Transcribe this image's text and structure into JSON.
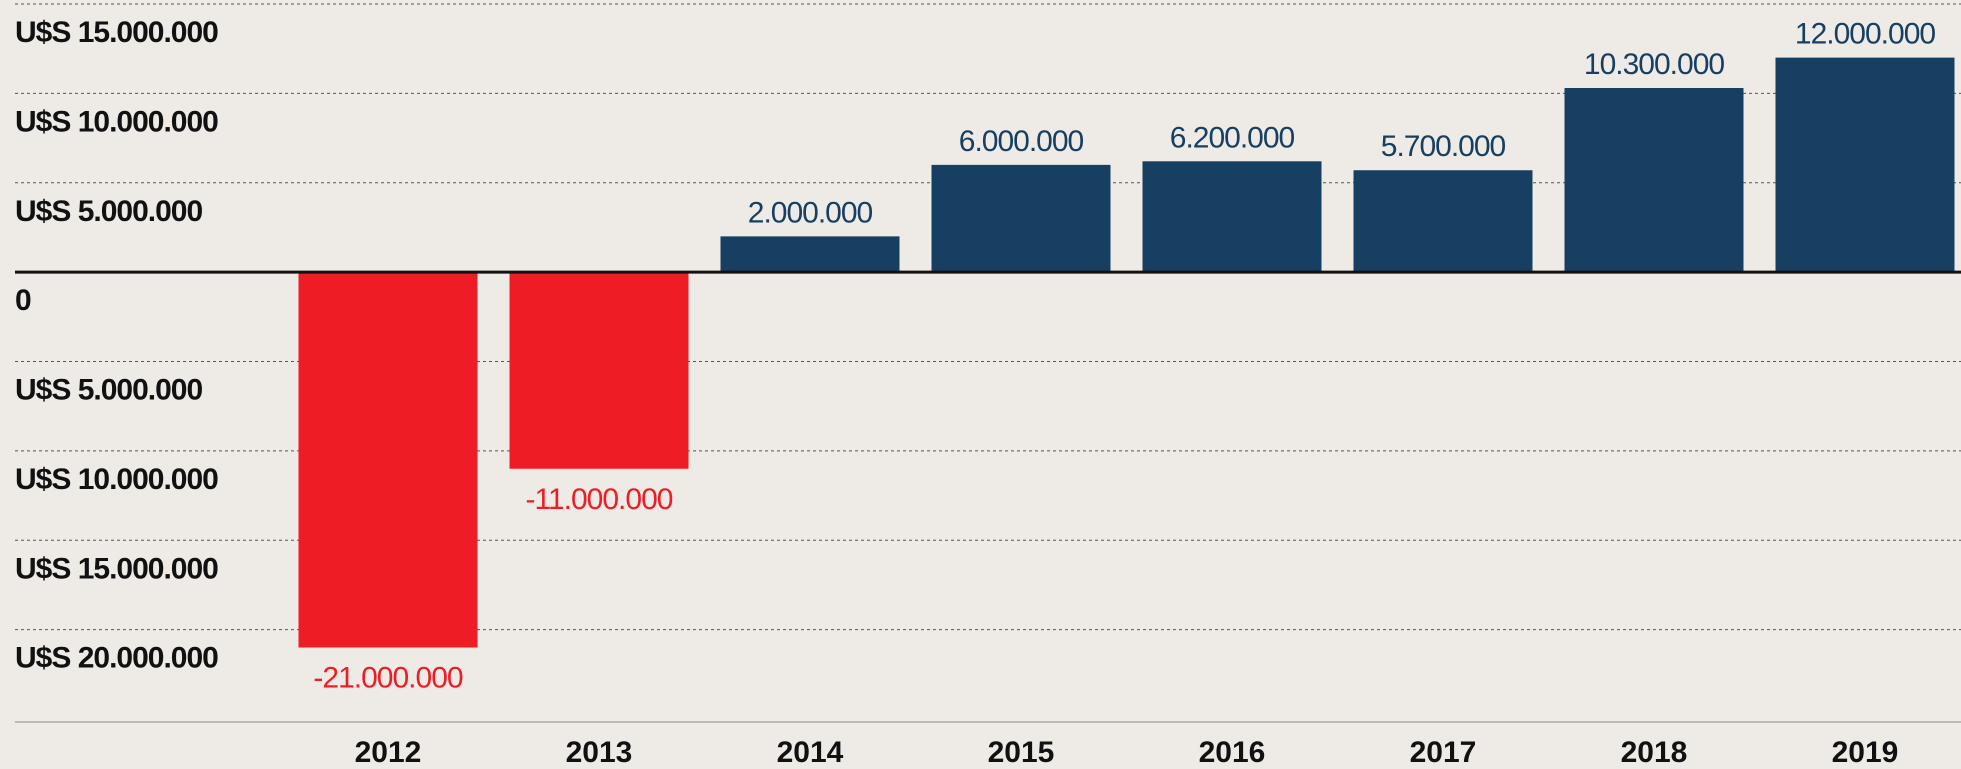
{
  "chart_data": {
    "type": "bar",
    "categories": [
      "2012",
      "2013",
      "2014",
      "2015",
      "2016",
      "2017",
      "2018",
      "2019"
    ],
    "values": [
      -21000000,
      -11000000,
      2000000,
      6000000,
      6200000,
      5700000,
      10300000,
      12000000
    ],
    "value_labels": [
      "-21.000.000",
      "-11.000.000",
      "2.000.000",
      "6.000.000",
      "6.200.000",
      "5.700.000",
      "10.300.000",
      "12.000.000"
    ],
    "colors": [
      "#ee1c25",
      "#ee1c25",
      "#173f61",
      "#173f61",
      "#173f61",
      "#173f61",
      "#173f61",
      "#173f61"
    ],
    "ylim": [
      -25000000,
      15000000
    ],
    "yticks": [
      {
        "value": 15000000,
        "label": "U$S 15.000.000"
      },
      {
        "value": 10000000,
        "label": "U$S 10.000.000"
      },
      {
        "value": 5000000,
        "label": "U$S 5.000.000"
      },
      0,
      {
        "value": -5000000,
        "label": "U$S 5.000.000"
      },
      {
        "value": -10000000,
        "label": "U$S 10.000.000"
      },
      {
        "value": -15000000,
        "label": "U$S 15.000.000"
      },
      {
        "value": -20000000,
        "label": "U$S 20.000.000"
      }
    ],
    "grid": true
  }
}
